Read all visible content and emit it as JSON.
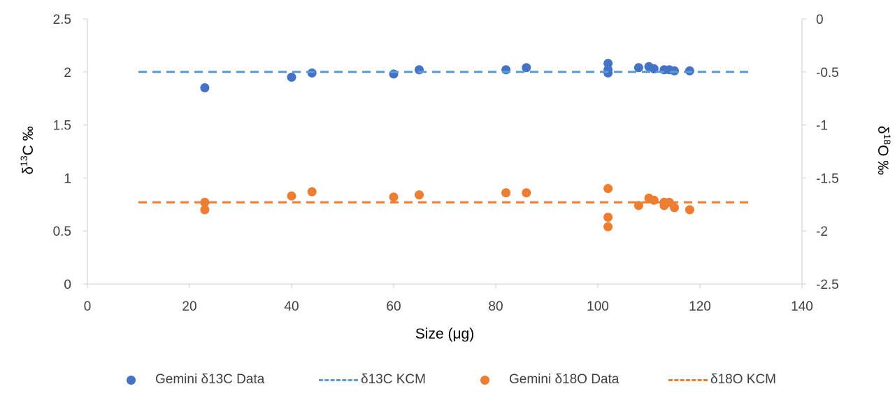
{
  "chart_data": {
    "type": "scatter",
    "xlabel": "Size (μg)",
    "ylabel": "δ13C ‰",
    "ylabel_parts": {
      "base": "δ",
      "sup": "13",
      "rest": "C ‰"
    },
    "y2label": "δ18O ‰",
    "y2label_parts": {
      "base": "δ",
      "sup": "18",
      "rest": "O ‰"
    },
    "xlim": [
      0,
      140
    ],
    "ylim": [
      0,
      2.5
    ],
    "y2lim": [
      -2.5,
      0
    ],
    "x_ticks": [
      "0",
      "20",
      "40",
      "60",
      "80",
      "100",
      "120",
      "140"
    ],
    "x_tick_values": [
      0,
      20,
      40,
      60,
      80,
      100,
      120,
      140
    ],
    "y_ticks": [
      "0",
      "0.5",
      "1",
      "1.5",
      "2",
      "2.5"
    ],
    "y_tick_values": [
      0,
      0.5,
      1,
      1.5,
      2,
      2.5
    ],
    "y2_ticks": [
      "-2.5",
      "-2",
      "-1.5",
      "-1",
      "-0.5",
      "0"
    ],
    "y2_tick_values": [
      -2.5,
      -2,
      -1.5,
      -1,
      -0.5,
      0
    ],
    "grid": false,
    "legend_position": "bottom",
    "series": [
      {
        "name": "Gemini δ13C Data",
        "kind": "points",
        "axis": "left",
        "color": "#4472C4",
        "x": [
          23,
          40,
          44,
          60,
          65,
          82,
          86,
          102,
          102,
          102,
          108,
          110,
          111,
          113,
          114,
          115,
          118
        ],
        "y": [
          1.85,
          1.95,
          1.99,
          1.98,
          2.02,
          2.02,
          2.04,
          2.08,
          2.02,
          1.99,
          2.04,
          2.05,
          2.03,
          2.02,
          2.02,
          2.01,
          2.01
        ]
      },
      {
        "name": "δ13C KCM",
        "kind": "dashed-line",
        "axis": "left",
        "color": "#5B9BD5",
        "x": [
          10,
          130
        ],
        "y": [
          2.0,
          2.0
        ]
      },
      {
        "name": "Gemini δ18O Data",
        "kind": "points",
        "axis": "right",
        "color": "#ED7D31",
        "x": [
          23,
          23,
          40,
          44,
          60,
          65,
          82,
          86,
          102,
          102,
          102,
          108,
          110,
          111,
          113,
          113,
          114,
          115,
          118
        ],
        "y": [
          -1.73,
          -1.8,
          -1.67,
          -1.63,
          -1.68,
          -1.66,
          -1.64,
          -1.64,
          -1.6,
          -1.87,
          -1.96,
          -1.76,
          -1.69,
          -1.71,
          -1.76,
          -1.73,
          -1.73,
          -1.78,
          -1.8
        ]
      },
      {
        "name": "δ18O KCM",
        "kind": "dashed-line",
        "axis": "right",
        "color": "#ED7D31",
        "x": [
          10,
          130
        ],
        "y": [
          -1.73,
          -1.73
        ]
      }
    ]
  }
}
